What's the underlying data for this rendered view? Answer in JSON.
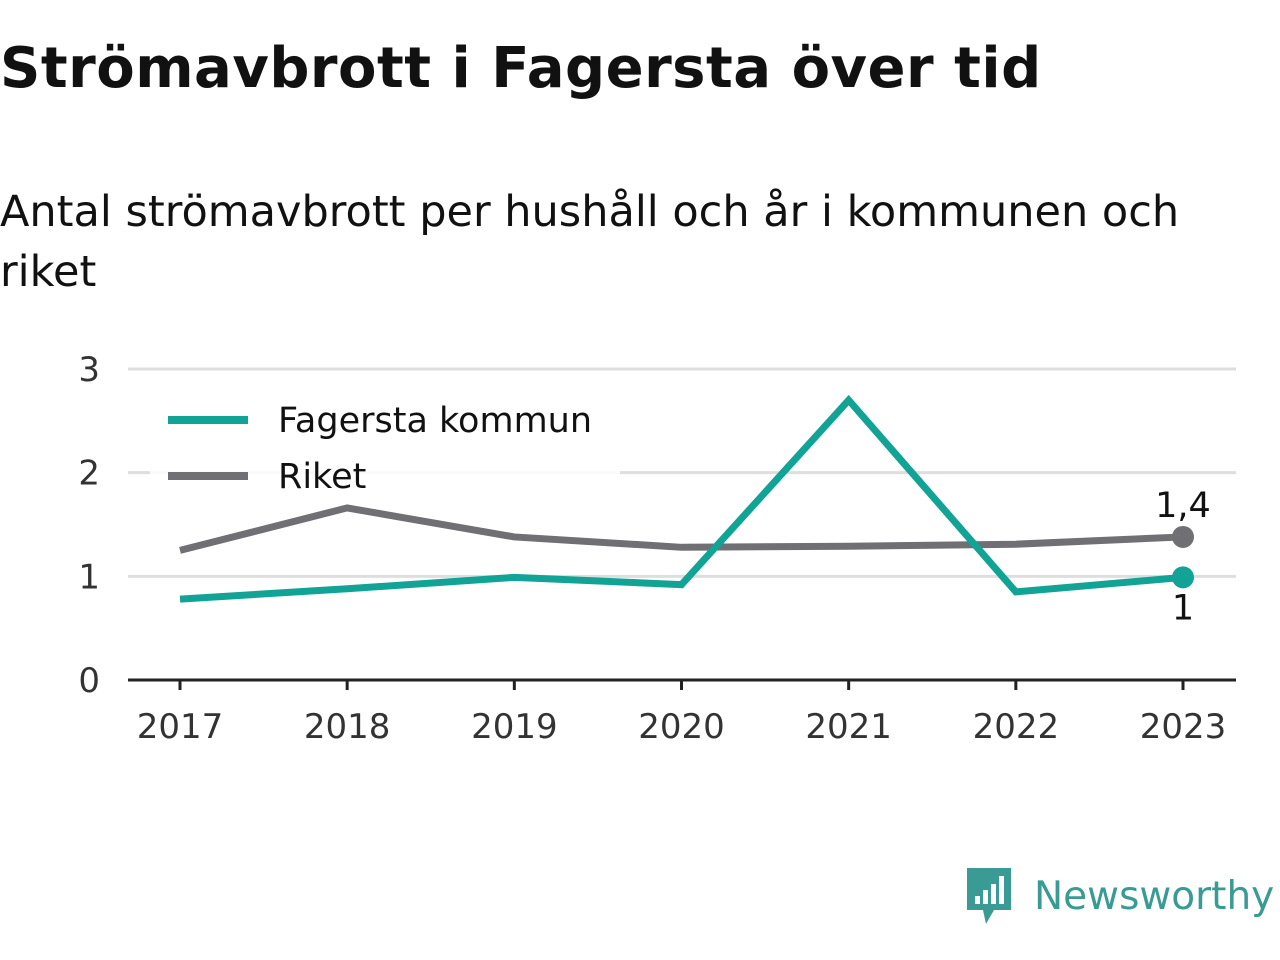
{
  "header": {
    "title": "Strömavbrott i Fagersta över tid",
    "subtitle": "Antal strömavbrott per hushåll och år i kommunen och riket"
  },
  "chart_data": {
    "type": "line",
    "categories": [
      "2017",
      "2018",
      "2019",
      "2020",
      "2021",
      "2022",
      "2023"
    ],
    "series": [
      {
        "name": "Fagersta kommun",
        "color": "#11a396",
        "values": [
          0.78,
          0.88,
          0.99,
          0.92,
          2.7,
          0.85,
          0.99
        ],
        "end_label": "1"
      },
      {
        "name": "Riket",
        "color": "#6f6f74",
        "values": [
          1.25,
          1.66,
          1.38,
          1.28,
          1.29,
          1.31,
          1.38
        ],
        "end_label": "1,4"
      }
    ],
    "ylim": [
      0,
      3
    ],
    "yticks": [
      "0",
      "1",
      "2",
      "3"
    ],
    "grid": true,
    "legend": "top-left"
  },
  "branding": {
    "name": "Newsworthy",
    "icon": "newsworthy-logo-icon",
    "color": "#3a9b94"
  }
}
